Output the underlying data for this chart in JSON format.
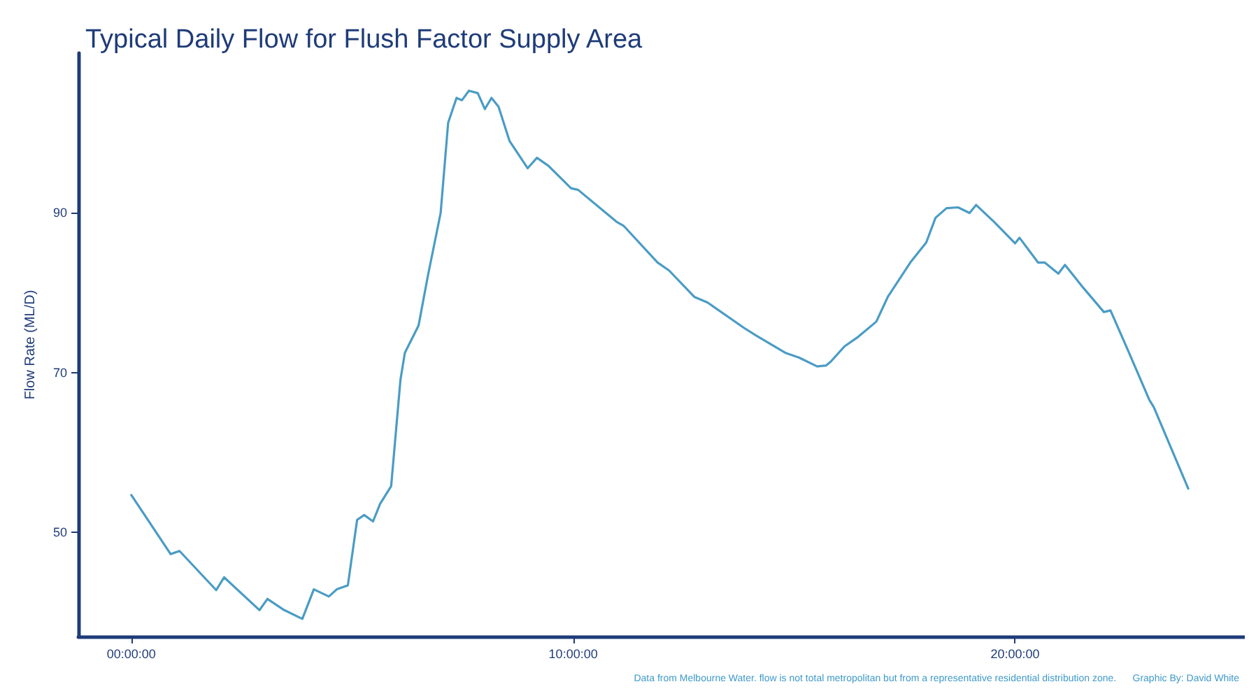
{
  "chart_data": {
    "type": "line",
    "title": "Typical Daily Flow for Flush Factor Supply Area",
    "ylabel": "Flow Rate (ML/D)",
    "annotations": [
      "Data from Melbourne Water. flow is not total metropolitan but from a representative residential distribution zone.",
      "Graphic By: David White"
    ],
    "x": [
      0,
      0.89,
      1.09,
      1.92,
      2.1,
      2.9,
      3.08,
      3.46,
      3.87,
      4.13,
      4.47,
      4.65,
      4.9,
      5.11,
      5.27,
      5.47,
      5.63,
      5.88,
      6.09,
      6.19,
      6.5,
      6.71,
      7.0,
      7.17,
      7.36,
      7.48,
      7.64,
      7.84,
      8.0,
      8.15,
      8.31,
      8.56,
      8.97,
      9.18,
      9.44,
      9.95,
      10.11,
      10.98,
      11.14,
      11.91,
      12.17,
      12.74,
      13.04,
      13.87,
      14.13,
      14.8,
      15.11,
      15.52,
      15.72,
      15.83,
      16.14,
      16.45,
      16.86,
      17.12,
      17.63,
      17.99,
      18.2,
      18.45,
      18.71,
      18.97,
      19.12,
      19.54,
      20.0,
      20.1,
      20.52,
      20.67,
      20.98,
      21.13,
      21.55,
      22.01,
      22.16,
      22.58,
      23.04,
      23.14,
      23.92
    ],
    "series": [
      {
        "color": "#4a9cc4",
        "values": [
          54.7,
          47.3,
          47.7,
          42.8,
          44.4,
          40.3,
          41.7,
          40.3,
          39.2,
          42.9,
          42.0,
          42.9,
          43.4,
          51.6,
          52.2,
          51.4,
          53.6,
          55.8,
          69.1,
          72.5,
          75.9,
          82.1,
          90.0,
          101.3,
          104.4,
          104.1,
          105.3,
          105.0,
          103.0,
          104.4,
          103.3,
          99.0,
          95.6,
          96.9,
          95.9,
          93.1,
          92.9,
          88.9,
          88.4,
          83.8,
          82.8,
          79.5,
          78.8,
          75.6,
          74.7,
          72.5,
          71.9,
          70.8,
          70.9,
          71.4,
          73.3,
          74.5,
          76.4,
          79.5,
          83.8,
          86.3,
          89.4,
          90.6,
          90.7,
          90.0,
          91.0,
          88.8,
          86.2,
          86.9,
          83.8,
          83.8,
          82.4,
          83.5,
          80.6,
          77.6,
          77.8,
          72.5,
          66.6,
          65.7,
          55.5
        ]
      }
    ],
    "xlim": [
      -1.2,
      25.2
    ],
    "xticks": [
      {
        "value": 0,
        "label": "00:00:00"
      },
      {
        "value": 10,
        "label": "10:00:00"
      },
      {
        "value": 20,
        "label": "20:00:00"
      }
    ],
    "ylim": [
      37,
      110
    ],
    "yticks": [
      50,
      70,
      90
    ],
    "grid": false,
    "marker": "none",
    "line_style": "solid"
  }
}
